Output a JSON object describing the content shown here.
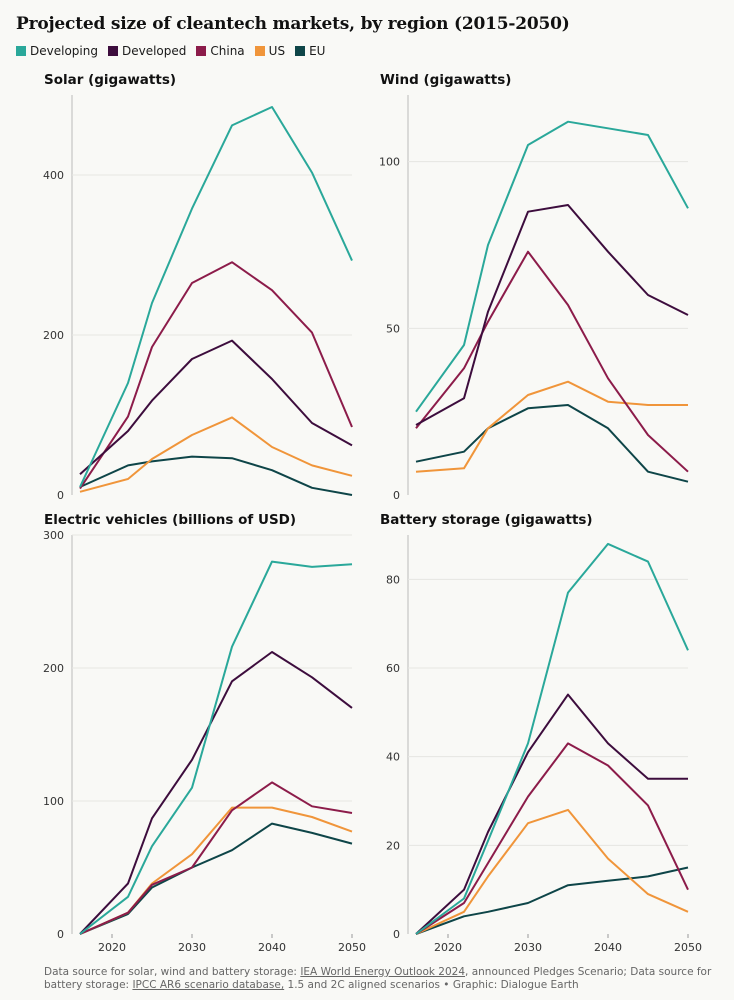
{
  "title": "Projected size of cleantech markets, by region (2015-2050)",
  "legend": [
    {
      "label": "Developing",
      "color": "#2aa89a"
    },
    {
      "label": "Developed",
      "color": "#3d0d3d"
    },
    {
      "label": "China",
      "color": "#8c1c4a"
    },
    {
      "label": "US",
      "color": "#f0953a"
    },
    {
      "label": "EU",
      "color": "#0e4548"
    }
  ],
  "footer": {
    "text1": "Data source for solar, wind and battery storage: ",
    "link1": "IEA World Energy Outlook 2024",
    "text2": ", announced Pledges Scenario; Data source for battery storage: ",
    "link2": "IPCC AR6 scenario database,",
    "text3": " 1.5 and 2C aligned scenarios • Graphic: Dialogue Earth"
  },
  "chart_data": [
    {
      "type": "line",
      "title": "Solar (gigawatts)",
      "x": [
        2016,
        2022,
        2025,
        2030,
        2035,
        2040,
        2045,
        2050
      ],
      "yticks": [
        0,
        200,
        400
      ],
      "ylim": [
        0,
        500
      ],
      "xticks": [],
      "series": [
        {
          "name": "Developing",
          "values": [
            10,
            140,
            240,
            358,
            462,
            485,
            403,
            293
          ]
        },
        {
          "name": "Developed",
          "values": [
            26,
            80,
            118,
            170,
            193,
            145,
            90,
            62
          ]
        },
        {
          "name": "China",
          "values": [
            8,
            98,
            185,
            265,
            291,
            256,
            203,
            85
          ]
        },
        {
          "name": "US",
          "values": [
            4,
            20,
            45,
            75,
            97,
            60,
            37,
            24
          ]
        },
        {
          "name": "EU",
          "values": [
            10,
            37,
            42,
            48,
            46,
            31,
            9,
            0
          ]
        }
      ]
    },
    {
      "type": "line",
      "title": "Wind (gigawatts)",
      "x": [
        2016,
        2022,
        2025,
        2030,
        2035,
        2040,
        2045,
        2050
      ],
      "yticks": [
        0,
        50,
        100
      ],
      "ylim": [
        0,
        120
      ],
      "xticks": [],
      "series": [
        {
          "name": "Developing",
          "values": [
            25,
            45,
            75,
            105,
            112,
            110,
            108,
            86
          ]
        },
        {
          "name": "Developed",
          "values": [
            21,
            29,
            55,
            85,
            87,
            73,
            60,
            54
          ]
        },
        {
          "name": "China",
          "values": [
            20,
            38,
            52,
            73,
            57,
            35,
            18,
            7
          ]
        },
        {
          "name": "US",
          "values": [
            7,
            8,
            20,
            30,
            34,
            28,
            27,
            27
          ]
        },
        {
          "name": "EU",
          "values": [
            10,
            13,
            20,
            26,
            27,
            20,
            7,
            4
          ]
        }
      ]
    },
    {
      "type": "line",
      "title": "Electric vehicles (billions of USD)",
      "x": [
        2016,
        2022,
        2025,
        2030,
        2035,
        2040,
        2045,
        2050
      ],
      "yticks": [
        0,
        100,
        200,
        300
      ],
      "ylim": [
        0,
        300
      ],
      "xticks": [
        2020,
        2030,
        2040,
        2050
      ],
      "series": [
        {
          "name": "Developing",
          "values": [
            0,
            28,
            66,
            110,
            216,
            280,
            276,
            278
          ]
        },
        {
          "name": "Developed",
          "values": [
            0,
            38,
            87,
            131,
            190,
            212,
            193,
            170
          ]
        },
        {
          "name": "China",
          "values": [
            0,
            16,
            37,
            50,
            93,
            114,
            96,
            91
          ]
        },
        {
          "name": "US",
          "values": [
            0,
            16,
            38,
            60,
            95,
            95,
            88,
            77
          ]
        },
        {
          "name": "EU",
          "values": [
            0,
            15,
            35,
            50,
            63,
            83,
            76,
            68
          ]
        }
      ]
    },
    {
      "type": "line",
      "title": "Battery storage (gigawatts)",
      "x": [
        2016,
        2022,
        2025,
        2030,
        2035,
        2040,
        2045,
        2050
      ],
      "yticks": [
        0,
        20,
        40,
        60,
        80
      ],
      "ylim": [
        0,
        90
      ],
      "xticks": [
        2020,
        2030,
        2040,
        2050
      ],
      "series": [
        {
          "name": "Developing",
          "values": [
            0,
            8,
            21,
            43,
            77,
            88,
            84,
            64
          ]
        },
        {
          "name": "Developed",
          "values": [
            0,
            10,
            23,
            41,
            54,
            43,
            35,
            35
          ]
        },
        {
          "name": "China",
          "values": [
            0,
            7,
            16,
            31,
            43,
            38,
            29,
            10
          ]
        },
        {
          "name": "US",
          "values": [
            0,
            5,
            13,
            25,
            28,
            17,
            9,
            5
          ]
        },
        {
          "name": "EU",
          "values": [
            0,
            4,
            5,
            7,
            11,
            12,
            13,
            15
          ]
        }
      ]
    }
  ]
}
